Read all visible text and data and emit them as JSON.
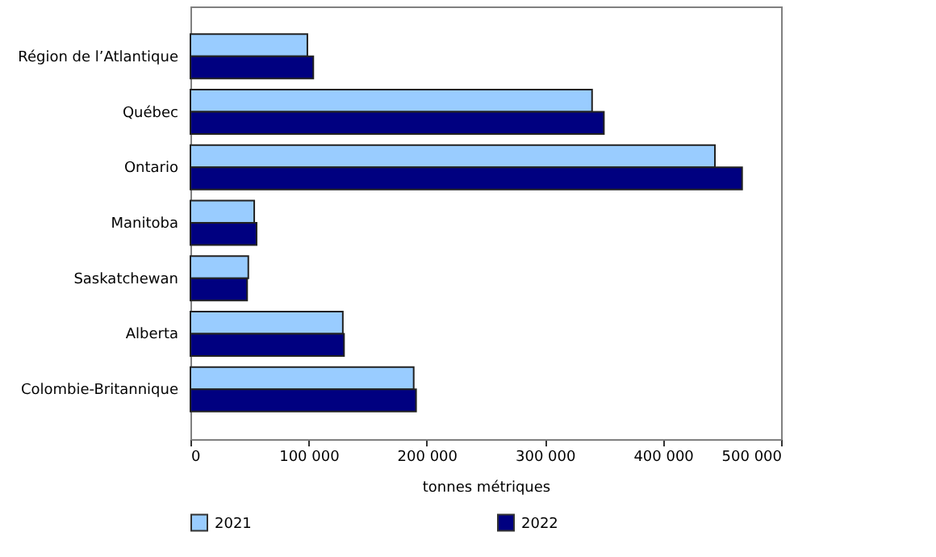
{
  "chart_data": {
    "type": "bar",
    "orientation": "horizontal",
    "xlabel": "tonnes métriques",
    "categories": [
      "Région de l’Atlantique",
      "Québec",
      "Ontario",
      "Manitoba",
      "Saskatchewan",
      "Alberta",
      "Colombie-Britannique"
    ],
    "series": [
      {
        "name": "2021",
        "color": "#99ccff",
        "values": [
          99000,
          340000,
          444000,
          54000,
          49000,
          129000,
          189000
        ]
      },
      {
        "name": "2022",
        "color": "#000080",
        "values": [
          104000,
          350000,
          467000,
          56000,
          48000,
          130000,
          191000
        ]
      }
    ],
    "xlim": [
      0,
      500000
    ],
    "xticks": [
      0,
      {
        "value": 100000,
        "label": "100 000"
      },
      {
        "value": 200000,
        "label": "200 000"
      },
      {
        "value": 300000,
        "label": "300 000"
      },
      {
        "value": 400000,
        "label": "400 000"
      },
      {
        "value": 500000,
        "label": "500 000"
      }
    ],
    "grid": false,
    "legend": "bottom"
  }
}
